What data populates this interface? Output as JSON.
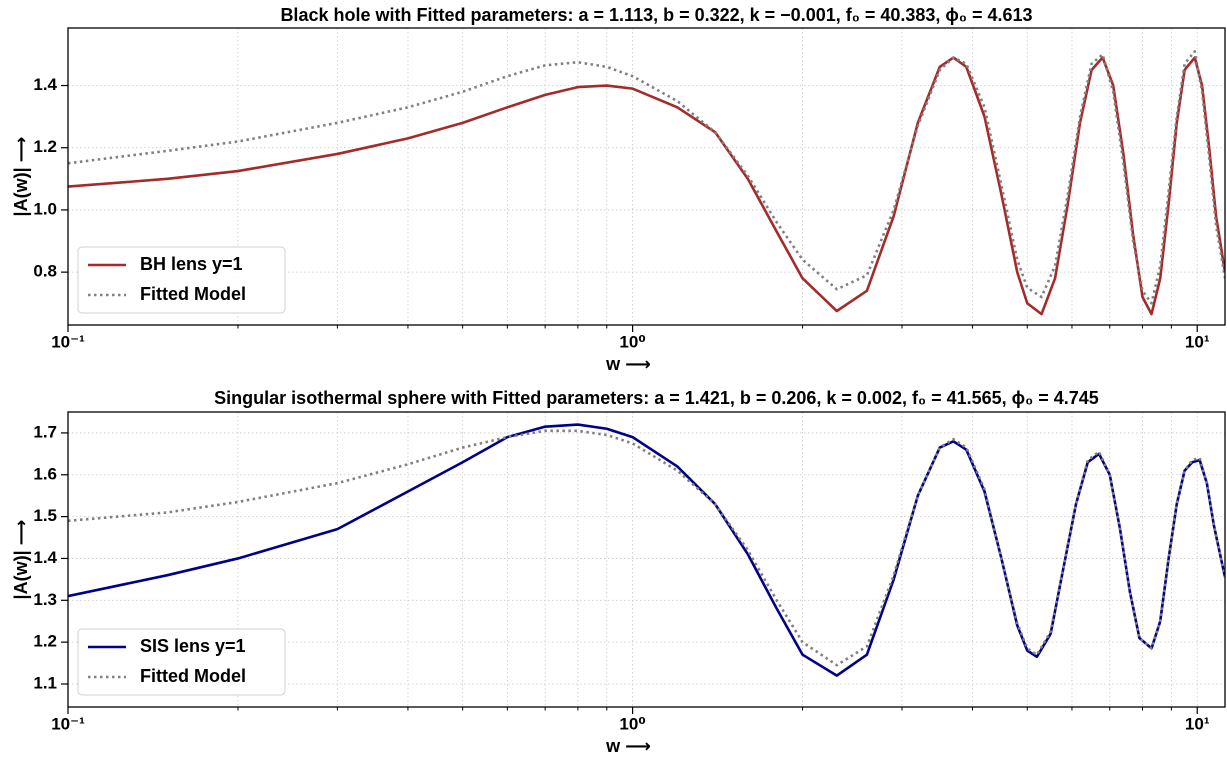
{
  "chart_data": [
    {
      "type": "line",
      "title": "Black hole with Fitted parameters: a = 1.113,  b = 0.322,  k = −0.001,  f₀ = 40.383,  ϕ₀ = 4.613",
      "x_label": "w ⟶",
      "y_label": "|A(w)|  ⟶",
      "x": [
        0.1,
        0.15,
        0.2,
        0.3,
        0.4,
        0.5,
        0.6,
        0.7,
        0.8,
        0.9,
        1.0,
        1.2,
        1.4,
        1.6,
        1.8,
        2.0,
        2.3,
        2.6,
        2.9,
        3.2,
        3.5,
        3.7,
        3.9,
        4.2,
        4.5,
        4.8,
        5.0,
        5.3,
        5.6,
        5.9,
        6.2,
        6.5,
        6.8,
        7.1,
        7.4,
        7.7,
        8.0,
        8.3,
        8.6,
        8.9,
        9.2,
        9.5,
        9.9,
        10.2,
        10.5,
        10.8,
        11.2
      ],
      "series": [
        {
          "name": "BH lens y=1",
          "color": "#a52a2a",
          "style": "solid",
          "values": [
            1.075,
            1.1,
            1.125,
            1.18,
            1.23,
            1.28,
            1.33,
            1.37,
            1.395,
            1.4,
            1.39,
            1.33,
            1.25,
            1.1,
            0.93,
            0.78,
            0.675,
            0.74,
            0.98,
            1.28,
            1.46,
            1.49,
            1.46,
            1.3,
            1.05,
            0.8,
            0.7,
            0.665,
            0.78,
            1.02,
            1.28,
            1.45,
            1.49,
            1.4,
            1.18,
            0.92,
            0.72,
            0.665,
            0.78,
            1.02,
            1.28,
            1.45,
            1.49,
            1.4,
            1.2,
            0.98,
            0.8
          ]
        },
        {
          "name": "Fitted Model",
          "color": "#808080",
          "style": "dotted",
          "values": [
            1.15,
            1.19,
            1.22,
            1.28,
            1.33,
            1.38,
            1.43,
            1.465,
            1.475,
            1.46,
            1.43,
            1.35,
            1.25,
            1.11,
            0.96,
            0.84,
            0.745,
            0.79,
            1.0,
            1.27,
            1.45,
            1.49,
            1.47,
            1.33,
            1.08,
            0.84,
            0.75,
            0.72,
            0.82,
            1.05,
            1.3,
            1.47,
            1.5,
            1.38,
            1.15,
            0.9,
            0.74,
            0.7,
            0.82,
            1.06,
            1.3,
            1.47,
            1.51,
            1.38,
            1.17,
            0.95,
            0.78
          ]
        }
      ],
      "xscale": "log",
      "xlim": [
        0.1,
        11.2
      ],
      "xticks": [
        {
          "value": 0.1,
          "label": "10⁻¹"
        },
        {
          "value": 1,
          "label": "10⁰"
        },
        {
          "value": 10,
          "label": "10¹"
        }
      ],
      "minor_xticks": [
        0.2,
        0.3,
        0.4,
        0.5,
        0.6,
        0.7,
        0.8,
        0.9,
        2,
        3,
        4,
        5,
        6,
        7,
        8,
        9
      ],
      "ylim": [
        0.63,
        1.585
      ],
      "yticks": [
        0.8,
        {
          "value": 1,
          "label": "1.0"
        },
        1.2,
        1.4
      ],
      "grid": true,
      "legend": "lower left"
    },
    {
      "type": "line",
      "title": "Singular isothermal sphere with Fitted parameters: a = 1.421,  b = 0.206,  k = 0.002,  f₀ = 41.565,  ϕ₀ = 4.745",
      "x_label": "w ⟶",
      "y_label": "|A(w)|  ⟶",
      "x": [
        0.1,
        0.15,
        0.2,
        0.3,
        0.4,
        0.5,
        0.6,
        0.7,
        0.8,
        0.9,
        1.0,
        1.2,
        1.4,
        1.6,
        1.8,
        2.0,
        2.3,
        2.6,
        2.9,
        3.2,
        3.5,
        3.7,
        3.9,
        4.2,
        4.5,
        4.8,
        5.0,
        5.2,
        5.5,
        5.8,
        6.1,
        6.4,
        6.7,
        7.0,
        7.3,
        7.6,
        7.9,
        8.3,
        8.6,
        8.9,
        9.2,
        9.5,
        9.8,
        10.1,
        10.4,
        10.7,
        11.2
      ],
      "series": [
        {
          "name": "SIS lens y=1",
          "color": "#00008b",
          "style": "solid",
          "values": [
            1.31,
            1.36,
            1.4,
            1.47,
            1.56,
            1.63,
            1.69,
            1.715,
            1.72,
            1.71,
            1.69,
            1.62,
            1.53,
            1.41,
            1.28,
            1.17,
            1.12,
            1.17,
            1.35,
            1.55,
            1.665,
            1.68,
            1.66,
            1.56,
            1.4,
            1.24,
            1.18,
            1.165,
            1.22,
            1.38,
            1.53,
            1.63,
            1.65,
            1.6,
            1.47,
            1.32,
            1.21,
            1.185,
            1.25,
            1.4,
            1.53,
            1.61,
            1.63,
            1.635,
            1.58,
            1.48,
            1.355
          ]
        },
        {
          "name": "Fitted Model",
          "color": "#808080",
          "style": "dotted",
          "values": [
            1.49,
            1.51,
            1.535,
            1.58,
            1.625,
            1.665,
            1.69,
            1.705,
            1.705,
            1.695,
            1.675,
            1.61,
            1.53,
            1.42,
            1.3,
            1.2,
            1.145,
            1.19,
            1.36,
            1.55,
            1.665,
            1.685,
            1.665,
            1.565,
            1.4,
            1.245,
            1.185,
            1.17,
            1.225,
            1.38,
            1.53,
            1.635,
            1.655,
            1.6,
            1.47,
            1.32,
            1.21,
            1.185,
            1.25,
            1.4,
            1.53,
            1.61,
            1.635,
            1.64,
            1.58,
            1.48,
            1.355
          ]
        }
      ],
      "xscale": "log",
      "xlim": [
        0.1,
        11.2
      ],
      "xticks": [
        {
          "value": 0.1,
          "label": "10⁻¹"
        },
        {
          "value": 1,
          "label": "10⁰"
        },
        {
          "value": 10,
          "label": "10¹"
        }
      ],
      "minor_xticks": [
        0.2,
        0.3,
        0.4,
        0.5,
        0.6,
        0.7,
        0.8,
        0.9,
        2,
        3,
        4,
        5,
        6,
        7,
        8,
        9
      ],
      "ylim": [
        1.045,
        1.75
      ],
      "yticks": [
        1.1,
        1.2,
        1.3,
        1.4,
        1.5,
        1.6,
        1.7
      ],
      "grid": true,
      "legend": "lower left"
    }
  ]
}
